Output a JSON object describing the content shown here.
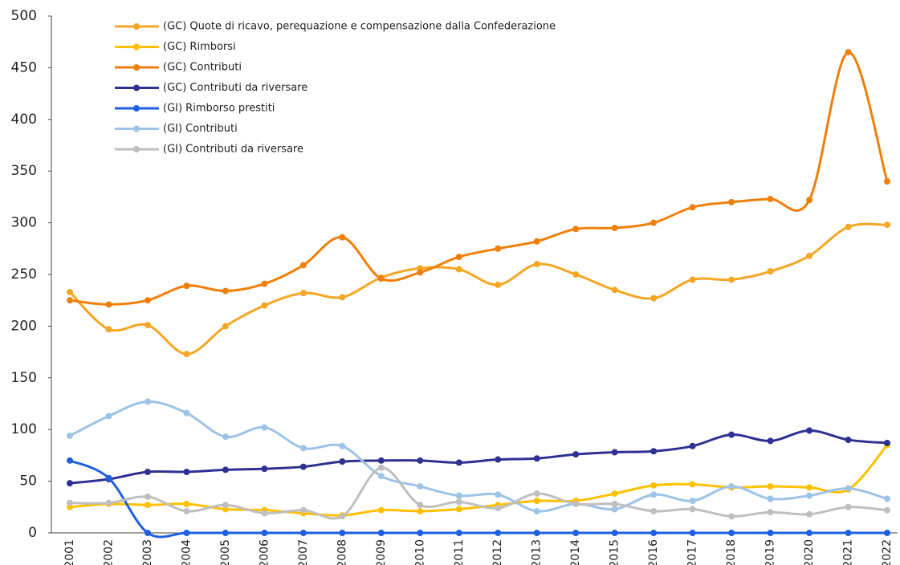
{
  "chart_data": {
    "type": "line",
    "categories": [
      "2001",
      "2002",
      "2003",
      "2004",
      "2005",
      "2006",
      "2007",
      "2008",
      "2009",
      "2010",
      "2011",
      "2012",
      "2013",
      "2014",
      "2015",
      "2016",
      "2017",
      "2018",
      "2019",
      "2020",
      "2021",
      "2022"
    ],
    "ylim": [
      0,
      500
    ],
    "yticks": [
      0,
      50,
      100,
      150,
      200,
      250,
      300,
      350,
      400,
      450,
      500
    ],
    "series": [
      {
        "name": "(GC) Quote di ricavo, perequazione e compensazione dalla Confederazione",
        "color": "#f5a623",
        "values": [
          233,
          197,
          201,
          173,
          200,
          220,
          232,
          228,
          247,
          256,
          255,
          240,
          260,
          250,
          235,
          227,
          245,
          245,
          253,
          268,
          296,
          298
        ]
      },
      {
        "name": "(GC) Rimborsi",
        "color": "#ffc000",
        "values": [
          25,
          28,
          27,
          28,
          23,
          22,
          19,
          17,
          22,
          21,
          23,
          27,
          31,
          31,
          38,
          46,
          47,
          44,
          45,
          44,
          42,
          85
        ]
      },
      {
        "name": "(GC) Contributi",
        "color": "#f07f09",
        "values": [
          225,
          221,
          225,
          239,
          234,
          241,
          259,
          286,
          246,
          252,
          267,
          275,
          282,
          294,
          295,
          300,
          315,
          320,
          323,
          322,
          465,
          340
        ]
      },
      {
        "name": "(GC) Contributi da riversare",
        "color": "#2e3192",
        "values": [
          48,
          52,
          59,
          59,
          61,
          62,
          64,
          69,
          70,
          70,
          68,
          71,
          72,
          76,
          78,
          79,
          84,
          95,
          89,
          99,
          90,
          87
        ]
      },
      {
        "name": "(GI) Rimborso prestiti",
        "color": "#1f5fe0",
        "values": [
          70,
          53,
          0,
          0,
          0,
          0,
          0,
          0,
          0,
          0,
          0,
          0,
          0,
          0,
          0,
          0,
          0,
          0,
          0,
          0,
          0,
          0
        ]
      },
      {
        "name": "(GI) Contributi",
        "color": "#9dc3e6",
        "values": [
          94,
          113,
          127,
          116,
          93,
          102,
          82,
          84,
          55,
          45,
          36,
          37,
          21,
          28,
          23,
          37,
          31,
          45,
          33,
          36,
          43,
          33
        ]
      },
      {
        "name": "(GI) Contributi da riversare",
        "color": "#bfbfbf",
        "values": [
          29,
          29,
          35,
          21,
          27,
          19,
          22,
          16,
          63,
          27,
          30,
          24,
          38,
          28,
          28,
          21,
          23,
          16,
          20,
          18,
          25,
          22
        ]
      }
    ]
  }
}
